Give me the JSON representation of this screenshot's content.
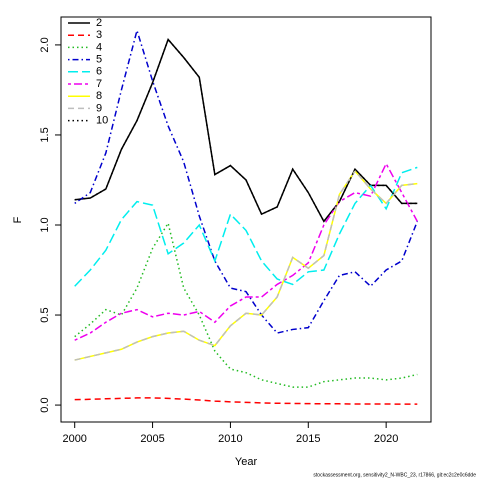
{
  "chart_data": {
    "type": "line",
    "x_label": "Year",
    "y_label": "F",
    "footnote": "stockassessment.org, sensitivity2_N-WBC_23, r17866, git:ec2c2e0c6dde",
    "x": [
      2000,
      2001,
      2002,
      2003,
      2004,
      2005,
      2006,
      2007,
      2008,
      2009,
      2010,
      2011,
      2012,
      2013,
      2014,
      2015,
      2016,
      2017,
      2018,
      2019,
      2020,
      2021,
      2022
    ],
    "xlim": [
      1999.12,
      2022.88
    ],
    "xticks": [
      2000,
      2005,
      2010,
      2015,
      2020
    ],
    "ylim": [
      -0.094,
      2.155
    ],
    "yticks": [
      {
        "value": 0,
        "label": "0.0"
      },
      0.5,
      {
        "value": 1,
        "label": "1.0"
      },
      1.5,
      {
        "value": 2,
        "label": "2.0"
      }
    ],
    "legend": "top-left",
    "series": [
      {
        "name": "2",
        "color": "#000000",
        "dash": "solid",
        "values": [
          1.14,
          1.15,
          1.2,
          1.42,
          1.58,
          1.79,
          2.03,
          1.93,
          1.82,
          1.28,
          1.33,
          1.25,
          1.06,
          1.1,
          1.31,
          1.18,
          1.02,
          1.13,
          1.31,
          1.22,
          1.22,
          1.12,
          1.12
        ]
      },
      {
        "name": "3",
        "color": "#ff0000",
        "dash": "dashed",
        "values": [
          0.03,
          0.032,
          0.035,
          0.037,
          0.04,
          0.04,
          0.037,
          0.033,
          0.028,
          0.022,
          0.018,
          0.015,
          0.012,
          0.01,
          0.009,
          0.008,
          0.007,
          0.007,
          0.006,
          0.006,
          0.006,
          0.005,
          0.005
        ]
      },
      {
        "name": "4",
        "color": "#22bb22",
        "dash": "dotted",
        "values": [
          0.38,
          0.45,
          0.53,
          0.5,
          0.65,
          0.87,
          1.01,
          0.65,
          0.5,
          0.3,
          0.2,
          0.18,
          0.14,
          0.12,
          0.1,
          0.1,
          0.13,
          0.14,
          0.15,
          0.15,
          0.14,
          0.15,
          0.17
        ]
      },
      {
        "name": "5",
        "color": "#0000cc",
        "dash": "dotdash",
        "values": [
          1.12,
          1.18,
          1.4,
          1.75,
          2.08,
          1.8,
          1.55,
          1.35,
          1.05,
          0.8,
          0.65,
          0.63,
          0.5,
          0.4,
          0.42,
          0.43,
          0.58,
          0.72,
          0.74,
          0.66,
          0.75,
          0.8,
          1.02
        ]
      },
      {
        "name": "6",
        "color": "#00eeee",
        "dash": "longdash",
        "values": [
          0.66,
          0.75,
          0.86,
          1.03,
          1.13,
          1.11,
          0.84,
          0.9,
          1.0,
          0.8,
          1.06,
          0.97,
          0.8,
          0.7,
          0.67,
          0.74,
          0.75,
          0.95,
          1.12,
          1.22,
          1.09,
          1.29,
          1.32
        ]
      },
      {
        "name": "7",
        "color": "#ee00ee",
        "dash": "twodash",
        "values": [
          0.36,
          0.4,
          0.46,
          0.51,
          0.53,
          0.49,
          0.51,
          0.5,
          0.52,
          0.46,
          0.55,
          0.6,
          0.6,
          0.67,
          0.72,
          0.79,
          1.0,
          1.13,
          1.18,
          1.16,
          1.34,
          1.18,
          1.02
        ]
      },
      {
        "name": "8",
        "color": "#ffff00",
        "dash": "solid",
        "values": [
          0.25,
          0.27,
          0.29,
          0.31,
          0.35,
          0.38,
          0.4,
          0.41,
          0.36,
          0.33,
          0.44,
          0.51,
          0.5,
          0.6,
          0.82,
          0.76,
          0.83,
          1.17,
          1.3,
          1.2,
          1.12,
          1.22,
          1.23
        ]
      },
      {
        "name": "9",
        "color": "#bebebe",
        "dash": "dashed",
        "values": [
          0.25,
          0.27,
          0.29,
          0.31,
          0.35,
          0.38,
          0.4,
          0.41,
          0.36,
          0.33,
          0.44,
          0.51,
          0.5,
          0.6,
          0.82,
          0.76,
          0.83,
          1.17,
          1.3,
          1.2,
          1.12,
          1.22,
          1.23
        ]
      },
      {
        "name": "10",
        "color": "#000000",
        "dash": "dotted",
        "values": [
          1.14,
          1.15,
          1.2,
          1.42,
          1.58,
          1.79,
          2.03,
          1.93,
          1.82,
          1.28,
          1.33,
          1.25,
          1.06,
          1.1,
          1.31,
          1.18,
          1.02,
          1.13,
          1.31,
          1.22,
          1.22,
          1.12,
          1.12
        ]
      }
    ]
  }
}
